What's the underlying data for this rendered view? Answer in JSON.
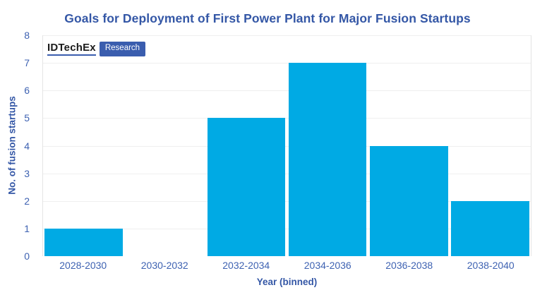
{
  "logo": {
    "brand": "IDTechEx",
    "badge": "Research"
  },
  "chart_data": {
    "type": "bar",
    "title": "Goals for Deployment of First Power Plant for Major Fusion Startups",
    "categories": [
      "2028-2030",
      "2030-2032",
      "2032-2034",
      "2034-2036",
      "2036-2038",
      "2038-2040"
    ],
    "values": [
      1,
      0,
      5,
      7,
      4,
      2
    ],
    "xlabel": "Year (binned)",
    "ylabel": "No. of fusion startups",
    "ylim": [
      0,
      8
    ],
    "y_ticks": [
      0,
      1,
      2,
      3,
      4,
      5,
      6,
      7,
      8
    ],
    "grid": "horizontal",
    "legend": "none",
    "bar_color": "#00AAE4"
  },
  "colors": {
    "bar": "#00AAE4",
    "title_text": "#3457A6",
    "axis_title_text": "#3457A6",
    "tick_text": "#3E62B2",
    "gridline": "#EFEFEF",
    "axis_line": "#E4E4E4",
    "badge_bg": "#3A5DAE",
    "brand_text": "#1B1B1B"
  }
}
